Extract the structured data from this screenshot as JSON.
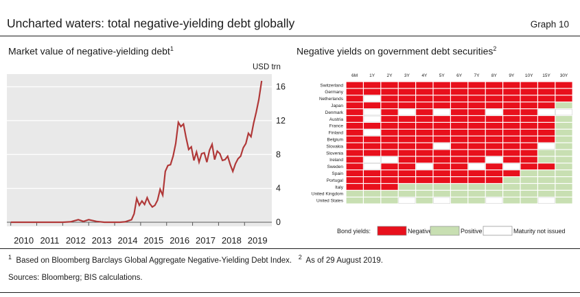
{
  "header": {
    "title": "Uncharted waters: total negative-yielding debt globally",
    "graph_label": "Graph 10"
  },
  "left_panel": {
    "title": "Market value of negative-yielding debt",
    "title_sup": "1",
    "unit": "USD trn"
  },
  "right_panel": {
    "title": "Negative yields on government debt securities",
    "title_sup": "2",
    "legend_title": "Bond yields:",
    "legend": [
      "Negative",
      "Positive",
      "Maturity not issued"
    ]
  },
  "footnotes": {
    "sup1": "1",
    "text1": "Based on Bloomberg Barclays Global Aggregate Negative-Yielding Debt Index.",
    "sup2": "2",
    "text2": "As of 29 August 2019."
  },
  "sources": "Sources: Bloomberg; BIS calculations.",
  "colors": {
    "negative": "#e8101c",
    "positive": "#c8dfb2",
    "not_issued": "#ffffff",
    "line": "#b03838",
    "plot_bg": "#e9e9e9"
  },
  "chart_data": [
    {
      "type": "line",
      "series": [
        {
          "values": [
            [
              2010.0,
              0
            ],
            [
              2010.5,
              0
            ],
            [
              2011.0,
              0
            ],
            [
              2011.5,
              0
            ],
            [
              2012.0,
              0
            ],
            [
              2012.3,
              0.05
            ],
            [
              2012.6,
              0.3
            ],
            [
              2012.8,
              0.1
            ],
            [
              2013.0,
              0.3
            ],
            [
              2013.3,
              0.1
            ],
            [
              2013.6,
              0
            ],
            [
              2014.0,
              0
            ],
            [
              2014.2,
              0
            ],
            [
              2014.4,
              0.05
            ],
            [
              2014.65,
              0.3
            ],
            [
              2014.75,
              1
            ],
            [
              2014.85,
              2.8
            ],
            [
              2014.95,
              2.0
            ],
            [
              2015.05,
              2.5
            ],
            [
              2015.15,
              2.1
            ],
            [
              2015.25,
              2.9
            ],
            [
              2015.35,
              2.2
            ],
            [
              2015.45,
              1.8
            ],
            [
              2015.55,
              2.0
            ],
            [
              2015.65,
              2.6
            ],
            [
              2015.75,
              3.9
            ],
            [
              2015.85,
              3.2
            ],
            [
              2015.95,
              6.0
            ],
            [
              2016.05,
              6.7
            ],
            [
              2016.15,
              6.8
            ],
            [
              2016.25,
              7.8
            ],
            [
              2016.35,
              9.3
            ],
            [
              2016.45,
              11.8
            ],
            [
              2016.55,
              11.3
            ],
            [
              2016.65,
              11.6
            ],
            [
              2016.75,
              10.0
            ],
            [
              2016.85,
              8.6
            ],
            [
              2016.95,
              8.9
            ],
            [
              2017.05,
              7.3
            ],
            [
              2017.15,
              8.3
            ],
            [
              2017.25,
              7.1
            ],
            [
              2017.35,
              8.1
            ],
            [
              2017.45,
              8.2
            ],
            [
              2017.55,
              7.1
            ],
            [
              2017.65,
              8.5
            ],
            [
              2017.75,
              9.2
            ],
            [
              2017.85,
              7.4
            ],
            [
              2017.95,
              8.4
            ],
            [
              2018.05,
              8.1
            ],
            [
              2018.15,
              7.3
            ],
            [
              2018.25,
              7.4
            ],
            [
              2018.35,
              7.8
            ],
            [
              2018.45,
              6.8
            ],
            [
              2018.55,
              6.0
            ],
            [
              2018.65,
              6.9
            ],
            [
              2018.75,
              7.5
            ],
            [
              2018.85,
              7.8
            ],
            [
              2018.95,
              8.8
            ],
            [
              2019.05,
              9.3
            ],
            [
              2019.15,
              10.5
            ],
            [
              2019.25,
              10.1
            ],
            [
              2019.35,
              11.7
            ],
            [
              2019.45,
              13.0
            ],
            [
              2019.55,
              14.5
            ],
            [
              2019.66,
              16.7
            ]
          ]
        }
      ],
      "x_ticks": [
        "2010",
        "2011",
        "2012",
        "2013",
        "2014",
        "2015",
        "2016",
        "2017",
        "2018",
        "2019"
      ],
      "y_ticks": [
        "0",
        "4",
        "8",
        "12",
        "16"
      ],
      "xlim": [
        2009.85,
        2020.05
      ],
      "ylim": [
        0,
        17.5
      ]
    },
    {
      "type": "heatmap",
      "columns": [
        "6M",
        "1Y",
        "2Y",
        "3Y",
        "4Y",
        "5Y",
        "6Y",
        "7Y",
        "8Y",
        "9Y",
        "10Y",
        "15Y",
        "30Y"
      ],
      "rows": [
        {
          "label": "Switzerland",
          "cells": "NNNNNNNNNNNNN"
        },
        {
          "label": "Germany",
          "cells": "NNNNNNNNNNNNN"
        },
        {
          "label": "Netherlands",
          "cells": "NXNNNNNNNNNNN"
        },
        {
          "label": "Japan",
          "cells": "NNNNNNNNNNNNP"
        },
        {
          "label": "Denmark",
          "cells": "NXNXNXNNXNNXX"
        },
        {
          "label": "Austria",
          "cells": "NXNNNNNNNNNNP"
        },
        {
          "label": "France",
          "cells": "NNNNNNNNNNNNP"
        },
        {
          "label": "Finland",
          "cells": "NXNNNNNNNNNNP"
        },
        {
          "label": "Belgium",
          "cells": "NNNNNNNNNNNNP"
        },
        {
          "label": "Slovakia",
          "cells": "NNNNNXNNNNNXP"
        },
        {
          "label": "Slovenia",
          "cells": "NNNNNNNNNNNPP"
        },
        {
          "label": "Ireland",
          "cells": "NXXNNNNNXNNPP"
        },
        {
          "label": "Sweden",
          "cells": "NXNNXNNXNXNNP"
        },
        {
          "label": "Spain",
          "cells": "NNNNNNNNNNPPP"
        },
        {
          "label": "Portugal",
          "cells": "NNNNNNNNNPPPP"
        },
        {
          "label": "Italy",
          "cells": "NNNPPPPPPPPPP"
        },
        {
          "label": "United Kingdom",
          "cells": "PPPPPPPPPPPPP"
        },
        {
          "label": "United States",
          "cells": "PPPXPXPPXPPXP"
        }
      ]
    }
  ]
}
